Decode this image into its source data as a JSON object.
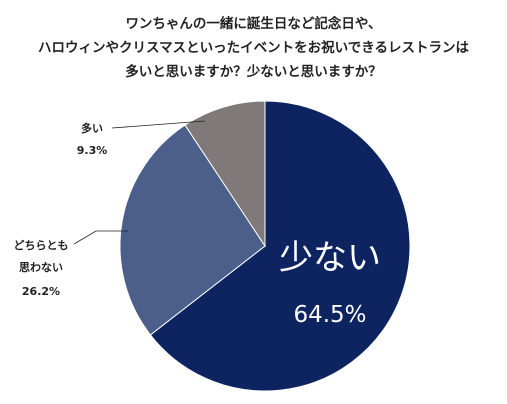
{
  "chart_data": {
    "type": "pie",
    "title_lines": [
      "ワンちゃんの一緒に誕生日など記念日や、",
      "ハロウィンやクリスマスといったイベントをお祝いできるレストランは",
      "多いと思いますか？少ないと思いますか？"
    ],
    "slices": [
      {
        "label": "少ない",
        "value": 64.5,
        "value_text": "64.5%",
        "color": "#0e2460"
      },
      {
        "label": "どちらとも思わない",
        "label_lines": [
          "どちらとも",
          "思わない"
        ],
        "value": 26.2,
        "value_text": "26.2%",
        "color": "#4b5f8a"
      },
      {
        "label": "多い",
        "value": 9.3,
        "value_text": "9.3%",
        "color": "#7f7a79"
      }
    ],
    "start_angle": "12 o'clock",
    "direction": "clockwise",
    "legend": "none"
  }
}
